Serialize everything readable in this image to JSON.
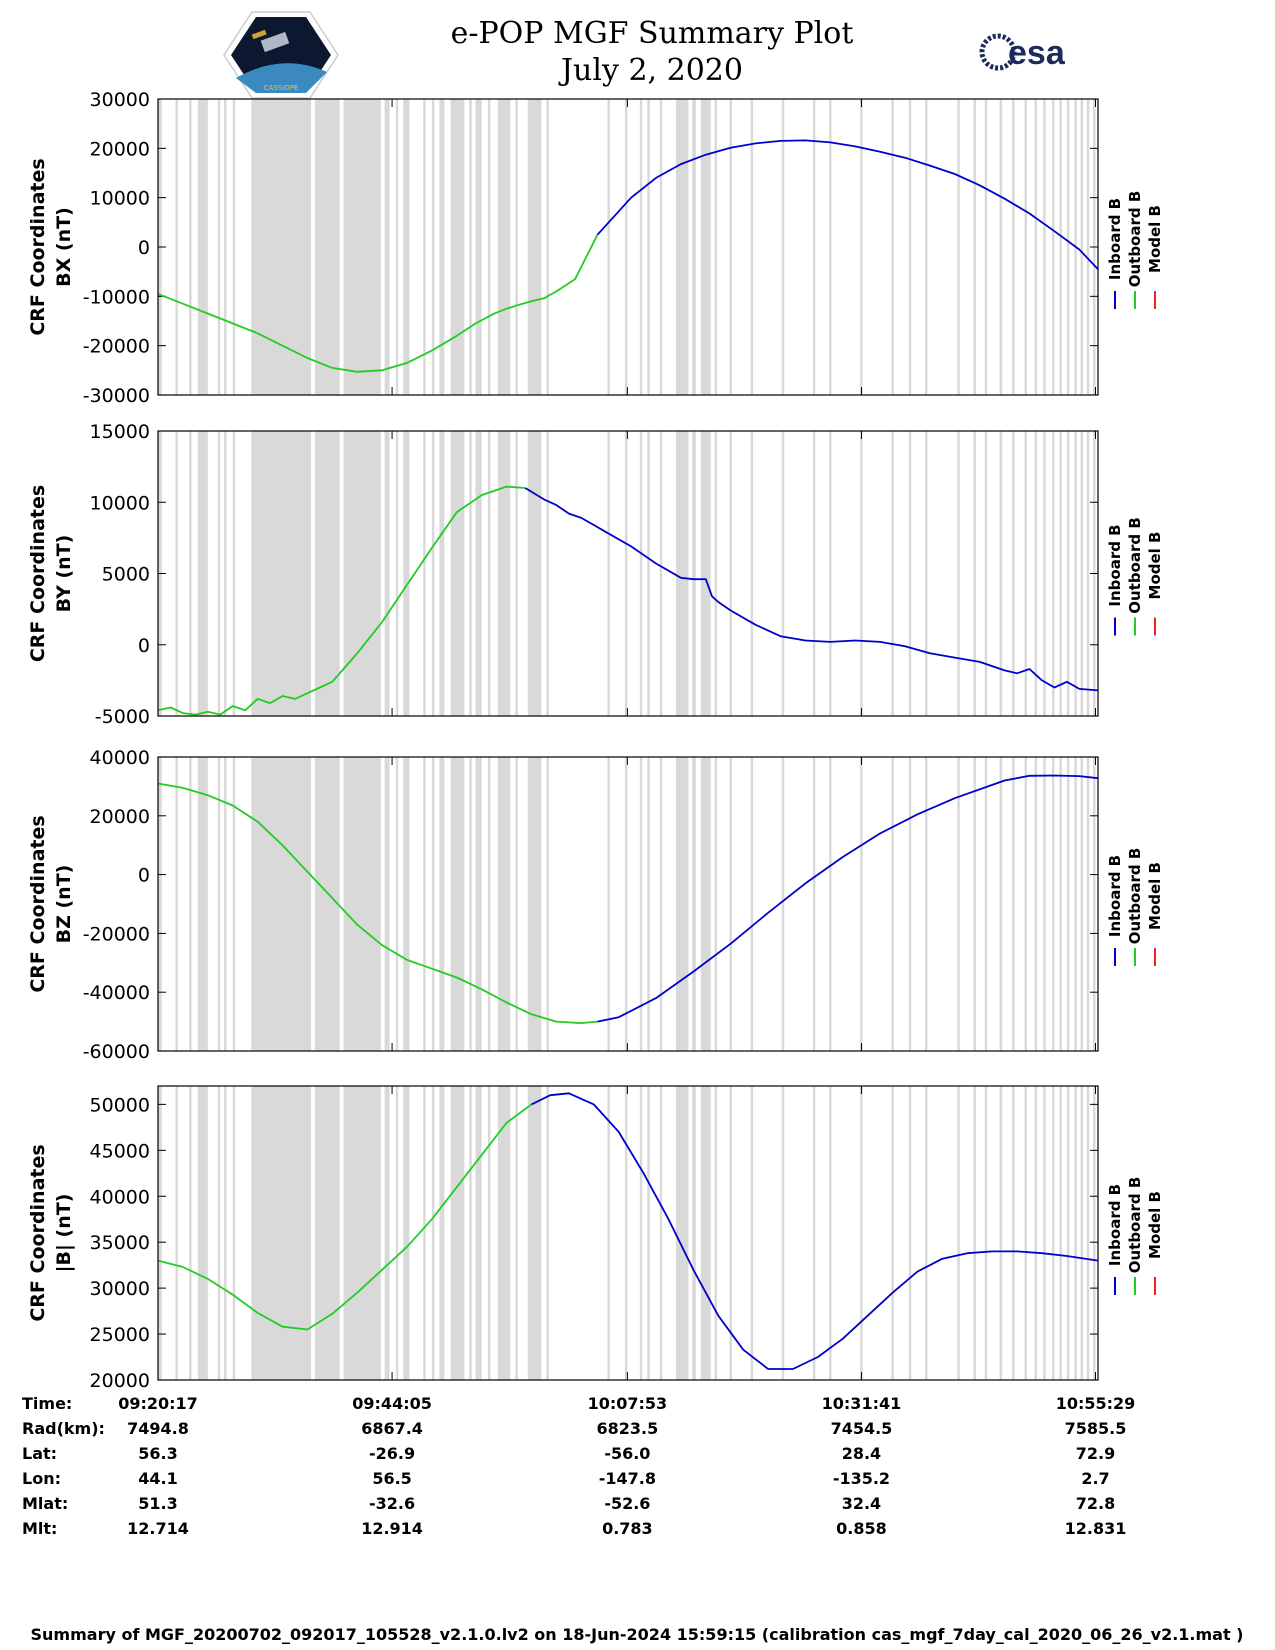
{
  "header": {
    "title_line1": "e-POP MGF Summary Plot",
    "title_line2": "July 2, 2020",
    "logo_right_text": "esa",
    "logo_left_text": "CASSIOPE"
  },
  "legend": {
    "labels": [
      "Inboard B",
      "Outboard B",
      "Model B"
    ],
    "colors": [
      "#0000cc",
      "#22cc22",
      "#ee2222"
    ]
  },
  "colors": {
    "inboard": "#0000cc",
    "outboard": "#22cc22",
    "model": "#ee2222",
    "gap_shading": "#d9d9d9"
  },
  "chart_data": [
    {
      "type": "line",
      "ylabel_line1": "CRF Coordinates",
      "ylabel_line2": "BX (nT)",
      "ylim": [
        -30000,
        30000
      ],
      "yticks": [
        30000,
        20000,
        10000,
        0,
        -10000,
        -20000,
        -30000
      ],
      "ytick_labels": [
        "30000",
        "20000",
        "10000",
        "0",
        "-10000",
        "-20000",
        "-30000"
      ],
      "series": [
        {
          "name": "Outboard B",
          "x": [
            0,
            2,
            5,
            8,
            10,
            12,
            14,
            16,
            18,
            20,
            22,
            24,
            25.5,
            27,
            28,
            29,
            30,
            31,
            32,
            33.5,
            35.3
          ],
          "y": [
            -9500,
            -11500,
            -14500,
            -17500,
            -20000,
            -22500,
            -24500,
            -25300,
            -25000,
            -23500,
            -21000,
            -18000,
            -15500,
            -13500,
            -12500,
            -11700,
            -11000,
            -10400,
            -9000,
            -6500,
            2500
          ]
        },
        {
          "name": "Inboard B",
          "x": [
            35.3,
            38,
            40,
            42,
            44,
            46,
            48,
            50,
            52,
            54,
            56,
            58,
            60,
            62,
            64,
            66,
            68,
            70,
            72,
            74,
            75.5
          ],
          "y": [
            2500,
            10000,
            14000,
            16800,
            18700,
            20100,
            21000,
            21500,
            21600,
            21200,
            20400,
            19300,
            18100,
            16500,
            14800,
            12500,
            9800,
            6800,
            3200,
            -500,
            -4500
          ]
        }
      ]
    },
    {
      "type": "line",
      "ylabel_line1": "CRF Coordinates",
      "ylabel_line2": "BY (nT)",
      "ylim": [
        -5000,
        15000
      ],
      "yticks": [
        15000,
        10000,
        5000,
        0,
        -5000
      ],
      "ytick_labels": [
        "15000",
        "10000",
        "5000",
        "0",
        "-5000"
      ],
      "series": [
        {
          "name": "Outboard B",
          "x": [
            0,
            1,
            2,
            3,
            4,
            5,
            6,
            7,
            8,
            9,
            10,
            11,
            12,
            13,
            14,
            15,
            16,
            18,
            20,
            22,
            24,
            26,
            28,
            29.5
          ],
          "y": [
            -4600,
            -4400,
            -4800,
            -4900,
            -4700,
            -4900,
            -4300,
            -4600,
            -3800,
            -4100,
            -3600,
            -3800,
            -3400,
            -3000,
            -2600,
            -1600,
            -600,
            1600,
            4200,
            6800,
            9300,
            10500,
            11100,
            11000
          ]
        },
        {
          "name": "Inboard B",
          "x": [
            29.5,
            31,
            32,
            33,
            34,
            35,
            36,
            38,
            40,
            42,
            43,
            44,
            44.5,
            45,
            46,
            48,
            50,
            52,
            54,
            56,
            58,
            60,
            62,
            64,
            66,
            68,
            69,
            70,
            71,
            72,
            73,
            74,
            75.5
          ],
          "y": [
            11000,
            10200,
            9800,
            9200,
            8900,
            8400,
            7900,
            6900,
            5700,
            4700,
            4600,
            4600,
            3400,
            3000,
            2400,
            1400,
            600,
            300,
            200,
            300,
            200,
            -100,
            -600,
            -900,
            -1200,
            -1800,
            -2000,
            -1700,
            -2500,
            -3000,
            -2600,
            -3100,
            -3200
          ]
        }
      ]
    },
    {
      "type": "line",
      "ylabel_line1": "CRF Coordinates",
      "ylabel_line2": "BZ (nT)",
      "ylim": [
        -60000,
        40000
      ],
      "yticks": [
        40000,
        20000,
        0,
        -20000,
        -40000,
        -60000
      ],
      "ytick_labels": [
        "40000",
        "20000",
        "0",
        "-20000",
        "-40000",
        "-60000"
      ],
      "series": [
        {
          "name": "Outboard B",
          "x": [
            0,
            2,
            4,
            6,
            8,
            10,
            12,
            14,
            16,
            18,
            20,
            22,
            24,
            26,
            28,
            30,
            32,
            34,
            35.3
          ],
          "y": [
            31000,
            29500,
            27000,
            23500,
            18000,
            10000,
            1000,
            -8000,
            -17000,
            -24000,
            -29000,
            -32000,
            -35000,
            -39000,
            -43500,
            -47500,
            -50000,
            -50500,
            -50000
          ]
        },
        {
          "name": "Inboard B",
          "x": [
            35.3,
            37,
            40,
            43,
            46,
            49,
            52,
            55,
            58,
            61,
            64,
            67,
            68,
            70,
            72,
            74,
            75.5
          ],
          "y": [
            -50000,
            -48500,
            -42000,
            -33000,
            -23500,
            -13000,
            -3000,
            6000,
            14000,
            20500,
            26000,
            30500,
            32000,
            33600,
            33700,
            33500,
            32800
          ]
        }
      ]
    },
    {
      "type": "line",
      "ylabel_line1": "CRF Coordinates",
      "ylabel_line2": "|B| (nT)",
      "ylim": [
        20000,
        52000
      ],
      "yticks": [
        50000,
        45000,
        40000,
        35000,
        30000,
        25000,
        20000
      ],
      "ytick_labels": [
        "50000",
        "45000",
        "40000",
        "35000",
        "30000",
        "25000",
        "20000"
      ],
      "series": [
        {
          "name": "Outboard B",
          "x": [
            0,
            2,
            4,
            6,
            8,
            10,
            12,
            14,
            16,
            18,
            20,
            22,
            24,
            26,
            28,
            30
          ],
          "y": [
            33000,
            32300,
            31000,
            29300,
            27300,
            25800,
            25500,
            27200,
            29500,
            32000,
            34500,
            37500,
            41000,
            44500,
            48000,
            50000
          ]
        },
        {
          "name": "Inboard B",
          "x": [
            30,
            31.5,
            33,
            35,
            37,
            39,
            41,
            43,
            45,
            47,
            49,
            51,
            53,
            55,
            57,
            59,
            61,
            63,
            65,
            67,
            69,
            71,
            73,
            75.5
          ],
          "y": [
            50000,
            51000,
            51200,
            50000,
            47000,
            42500,
            37500,
            32000,
            27000,
            23300,
            21200,
            21200,
            22500,
            24500,
            27000,
            29500,
            31800,
            33200,
            33800,
            34000,
            34000,
            33800,
            33500,
            33000
          ]
        }
      ]
    }
  ],
  "x_axis": {
    "range": [
      0,
      75.5
    ],
    "tick_positions": [
      0,
      18.8,
      37.7,
      56.5,
      75.3
    ]
  },
  "gap_spans": [
    [
      0,
      0.3
    ],
    [
      1.4,
      1.6
    ],
    [
      2.5,
      2.7
    ],
    [
      3.2,
      4.0
    ],
    [
      4.8,
      5.0
    ],
    [
      5.3,
      5.5
    ],
    [
      6.0,
      6.2
    ],
    [
      7.5,
      12.3
    ],
    [
      12.6,
      14.6
    ],
    [
      14.9,
      17.9
    ],
    [
      18.2,
      18.6
    ],
    [
      19.1,
      19.3
    ],
    [
      19.7,
      20.2
    ],
    [
      21.3,
      21.5
    ],
    [
      22.0,
      22.2
    ],
    [
      22.6,
      23.0
    ],
    [
      23.5,
      24.6
    ],
    [
      25.0,
      25.2
    ],
    [
      25.5,
      26.0
    ],
    [
      26.5,
      26.7
    ],
    [
      27.3,
      28.3
    ],
    [
      28.7,
      28.9
    ],
    [
      29.7,
      30.8
    ],
    [
      31.2,
      31.4
    ],
    [
      36.1,
      36.3
    ],
    [
      37.5,
      37.7
    ],
    [
      38.7,
      38.9
    ],
    [
      39.3,
      39.5
    ],
    [
      40.3,
      40.5
    ],
    [
      41.6,
      42.6
    ],
    [
      42.9,
      43.2
    ],
    [
      43.6,
      44.4
    ],
    [
      44.7,
      44.9
    ],
    [
      45.9,
      46.1
    ],
    [
      47.6,
      47.8
    ],
    [
      50.1,
      50.3
    ],
    [
      52.6,
      52.8
    ],
    [
      53.9,
      54.1
    ],
    [
      56.4,
      56.6
    ],
    [
      58.9,
      59.1
    ],
    [
      60.3,
      60.5
    ],
    [
      61.6,
      61.8
    ],
    [
      64.2,
      64.4
    ],
    [
      65.5,
      65.7
    ],
    [
      66.4,
      66.6
    ],
    [
      67.6,
      67.8
    ],
    [
      68.6,
      68.8
    ],
    [
      69.6,
      69.8
    ],
    [
      70.4,
      70.6
    ],
    [
      71.1,
      71.3
    ],
    [
      71.8,
      72.0
    ],
    [
      72.4,
      72.6
    ],
    [
      73.0,
      73.2
    ],
    [
      73.6,
      73.8
    ],
    [
      74.1,
      74.3
    ],
    [
      74.6,
      74.8
    ],
    [
      75.1,
      75.3
    ]
  ],
  "table": {
    "row_labels": [
      "Time:",
      "Rad(km):",
      "Lat:",
      "Lon:",
      "Mlat:",
      "Mlt:"
    ],
    "columns": [
      [
        "09:20:17",
        "7494.8",
        "56.3",
        "44.1",
        "51.3",
        "12.714"
      ],
      [
        "09:44:05",
        "6867.4",
        "-26.9",
        "56.5",
        "-32.6",
        "12.914"
      ],
      [
        "10:07:53",
        "6823.5",
        "-56.0",
        "-147.8",
        "-52.6",
        "0.783"
      ],
      [
        "10:31:41",
        "7454.5",
        "28.4",
        "-135.2",
        "32.4",
        "0.858"
      ],
      [
        "10:55:29",
        "7585.5",
        "72.9",
        "2.7",
        "72.8",
        "12.831"
      ]
    ]
  },
  "footer": "Summary of MGF_20200702_092017_105528_v2.1.0.lv2 on 18-Jun-2024 15:59:15 (calibration cas_mgf_7day_cal_2020_06_26_v2.1.mat )"
}
